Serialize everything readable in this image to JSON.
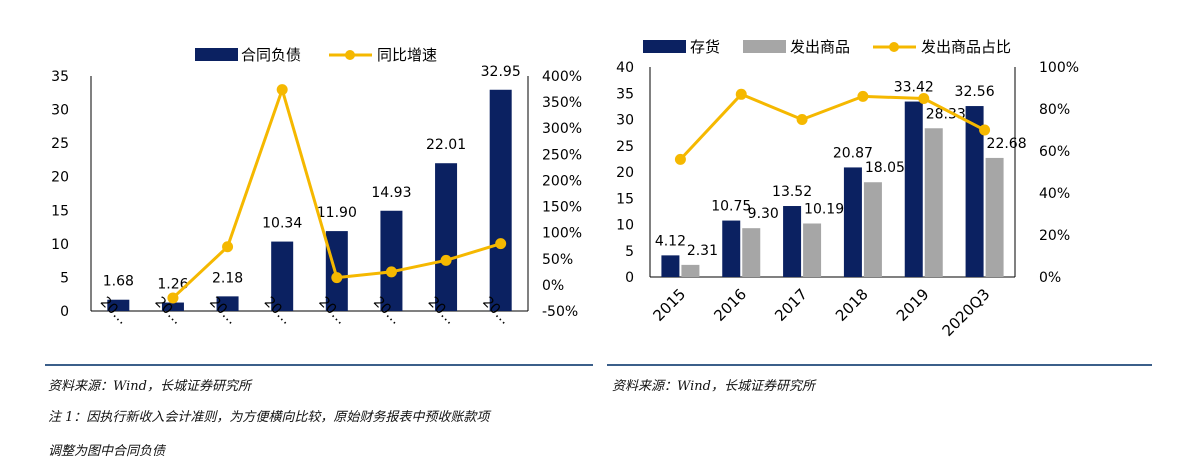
{
  "chart_data": [
    {
      "type": "bar",
      "categories": [
        "20…",
        "20…",
        "20…",
        "20…",
        "20…",
        "20…",
        "20…",
        "20…"
      ],
      "series": [
        {
          "name": "合同负债",
          "type": "bar",
          "axis": "left",
          "values": [
            1.68,
            1.26,
            2.18,
            10.34,
            11.9,
            14.93,
            22.01,
            32.95
          ],
          "labels": [
            "1.68",
            "1.26",
            "2.18",
            "10.34",
            "11.90",
            "14.93",
            "22.01",
            "32.95"
          ]
        },
        {
          "name": "同比增速",
          "type": "line",
          "axis": "right",
          "values": [
            null,
            -25,
            73,
            374,
            14,
            25,
            47,
            79
          ]
        }
      ],
      "ylim": [
        0,
        35
      ],
      "yticks": [
        "0",
        "5",
        "10",
        "15",
        "20",
        "25",
        "30",
        "35"
      ],
      "y2lim": [
        -50,
        400
      ],
      "y2ticks": [
        "-50%",
        "0%",
        "50%",
        "100%",
        "150%",
        "200%",
        "250%",
        "300%",
        "350%",
        "400%"
      ],
      "legend_position": "top",
      "colors": {
        "bar": "#0b2161",
        "line": "#f5b800"
      }
    },
    {
      "type": "bar",
      "categories": [
        "2015",
        "2016",
        "2017",
        "2018",
        "2019",
        "2020Q3"
      ],
      "series": [
        {
          "name": "存货",
          "type": "bar",
          "axis": "left",
          "values": [
            4.12,
            10.75,
            13.52,
            20.87,
            33.42,
            32.56
          ],
          "labels": [
            "4.12",
            "10.75",
            "13.52",
            "20.87",
            "33.42",
            "32.56"
          ]
        },
        {
          "name": "发出商品",
          "type": "bar",
          "axis": "left",
          "values": [
            2.31,
            9.3,
            10.19,
            18.05,
            28.33,
            22.68
          ],
          "labels": [
            "2.31",
            "9.30",
            "10.19",
            "18.05",
            "28.33",
            "22.68"
          ]
        },
        {
          "name": "发出商品占比",
          "type": "line",
          "axis": "right",
          "values": [
            56,
            87,
            75,
            86,
            85,
            70
          ]
        }
      ],
      "ylim": [
        0,
        40
      ],
      "yticks": [
        "0",
        "5",
        "10",
        "15",
        "20",
        "25",
        "30",
        "35",
        "40"
      ],
      "y2lim": [
        0,
        100
      ],
      "y2ticks": [
        "0%",
        "20%",
        "40%",
        "60%",
        "80%",
        "100%"
      ],
      "legend_position": "top",
      "colors": {
        "bar1": "#0b2161",
        "bar2": "#a6a6a6",
        "line": "#f5b800"
      }
    }
  ],
  "notes": {
    "left_source": "资料来源：Wind，长城证券研究所",
    "left_note1": "注 1：因执行新收入会计准则，为方便横向比较，原始财务报表中预收账款项",
    "left_note2": "调整为图中合同负债",
    "right_source": "资料来源：Wind，长城证券研究所"
  }
}
